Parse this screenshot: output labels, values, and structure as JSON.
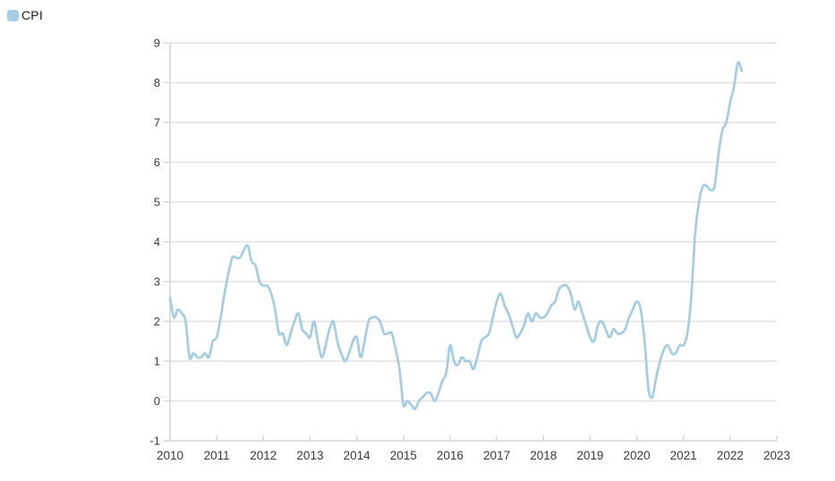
{
  "legend": {
    "label": "CPI",
    "color": "#a6cee3"
  },
  "chart_data": {
    "type": "line",
    "title": "",
    "xlabel": "",
    "ylabel": "",
    "x_range": [
      2010,
      2023
    ],
    "y_range": [
      -1,
      9
    ],
    "x_ticks": [
      2010,
      2011,
      2012,
      2013,
      2014,
      2015,
      2016,
      2017,
      2018,
      2019,
      2020,
      2021,
      2022,
      2023
    ],
    "y_ticks": [
      9,
      8,
      7,
      6,
      5,
      4,
      3,
      2,
      1,
      0,
      -1
    ],
    "grid": "horizontal-only",
    "legend_position": "top-left",
    "series": [
      {
        "name": "CPI",
        "color": "#a6cee3",
        "frequency": "monthly",
        "start": "2010-01",
        "end": "2022-04",
        "values": [
          2.6,
          2.1,
          2.3,
          2.2,
          2.0,
          1.1,
          1.2,
          1.1,
          1.1,
          1.2,
          1.1,
          1.5,
          1.6,
          2.1,
          2.7,
          3.2,
          3.6,
          3.6,
          3.6,
          3.8,
          3.9,
          3.5,
          3.4,
          3.0,
          2.9,
          2.9,
          2.7,
          2.3,
          1.7,
          1.7,
          1.4,
          1.7,
          2.0,
          2.2,
          1.8,
          1.7,
          1.6,
          2.0,
          1.5,
          1.1,
          1.4,
          1.8,
          2.0,
          1.5,
          1.2,
          1.0,
          1.2,
          1.5,
          1.6,
          1.1,
          1.5,
          2.0,
          2.1,
          2.1,
          2.0,
          1.7,
          1.7,
          1.7,
          1.3,
          0.8,
          -0.1,
          0.0,
          -0.1,
          -0.2,
          0.0,
          0.1,
          0.2,
          0.2,
          0.0,
          0.2,
          0.5,
          0.7,
          1.4,
          1.0,
          0.9,
          1.1,
          1.0,
          1.0,
          0.8,
          1.1,
          1.5,
          1.6,
          1.7,
          2.1,
          2.5,
          2.7,
          2.4,
          2.2,
          1.9,
          1.6,
          1.7,
          1.9,
          2.2,
          2.0,
          2.2,
          2.1,
          2.1,
          2.2,
          2.4,
          2.5,
          2.8,
          2.9,
          2.9,
          2.7,
          2.3,
          2.5,
          2.2,
          1.9,
          1.6,
          1.5,
          1.9,
          2.0,
          1.8,
          1.6,
          1.8,
          1.7,
          1.7,
          1.8,
          2.1,
          2.3,
          2.5,
          2.3,
          1.5,
          0.3,
          0.1,
          0.6,
          1.0,
          1.3,
          1.4,
          1.2,
          1.2,
          1.4,
          1.4,
          1.7,
          2.6,
          4.2,
          5.0,
          5.4,
          5.4,
          5.3,
          5.4,
          6.2,
          6.8,
          7.0,
          7.5,
          7.9,
          8.5,
          8.3
        ]
      }
    ]
  },
  "colors": {
    "line": "#a6cee3",
    "gridline": "#e2e2e2",
    "axis": "#d6d6d6",
    "tick_label": "#3b3b3b"
  }
}
